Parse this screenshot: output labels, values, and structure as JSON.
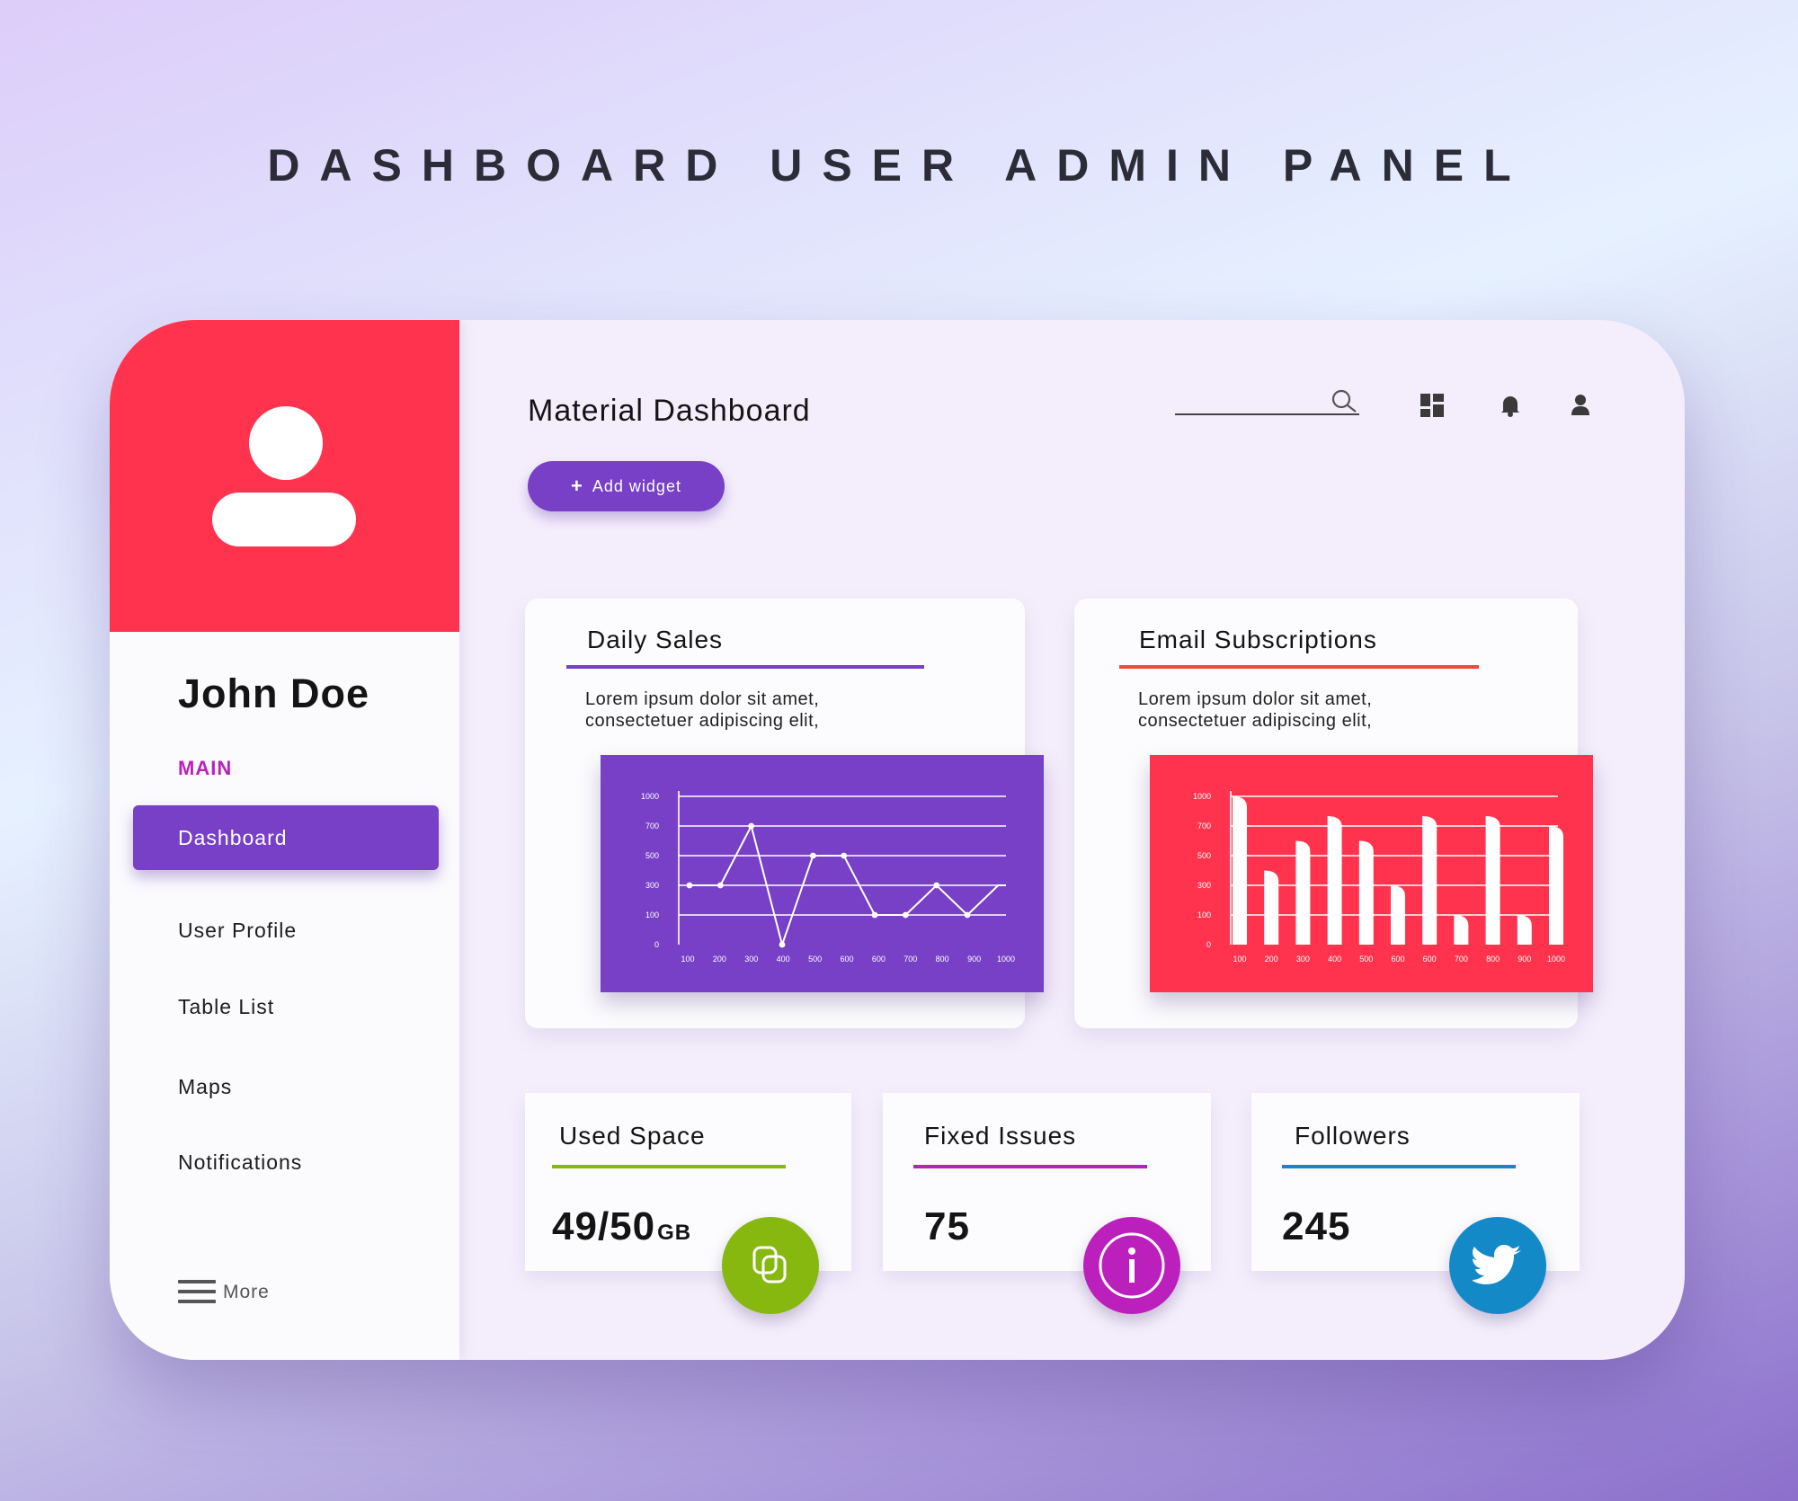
{
  "banner": {
    "title": "DASHBOARD USER ADMIN PANEL"
  },
  "sidebar": {
    "user_name": "John Doe",
    "section_label": "MAIN",
    "items": [
      {
        "label": "Dashboard",
        "active": true
      },
      {
        "label": "User Profile"
      },
      {
        "label": "Table List"
      },
      {
        "label": "Maps"
      },
      {
        "label": "Notifications"
      }
    ],
    "more_label": "More"
  },
  "header": {
    "title": "Material Dashboard",
    "add_widget_label": "Add widget",
    "icons": [
      "search-icon",
      "grid-icon",
      "bell-icon",
      "user-icon"
    ]
  },
  "cards": {
    "daily_sales": {
      "title": "Daily Sales",
      "desc_line1": "Lorem ipsum dolor sit amet,",
      "desc_line2": "consectetuer adipiscing elit,",
      "accent": "#7740c7"
    },
    "email_subscriptions": {
      "title": "Email Subscriptions",
      "desc_line1": "Lorem ipsum dolor sit amet,",
      "desc_line2": "consectetuer adipiscing elit,",
      "accent": "#ff334d"
    }
  },
  "stats": {
    "used_space": {
      "title": "Used Space",
      "value": "49/50",
      "unit": "GB",
      "accent": "#86b80f",
      "icon": "copy-icon"
    },
    "fixed_issues": {
      "title": "Fixed Issues",
      "value": "75",
      "accent": "#bc20bc",
      "icon": "info-icon"
    },
    "followers": {
      "title": "Followers",
      "value": "245",
      "accent": "#1389c8",
      "icon": "twitter-icon"
    }
  },
  "chart_data": [
    {
      "type": "line",
      "y_ticks": [
        "1000",
        "700",
        "500",
        "300",
        "100",
        "0"
      ],
      "x": [
        "100",
        "200",
        "300",
        "400",
        "500",
        "600",
        "600",
        "700",
        "800",
        "900",
        "1000"
      ],
      "values": [
        300,
        300,
        700,
        0,
        500,
        500,
        100,
        100,
        300,
        100,
        300
      ],
      "grid": true
    },
    {
      "type": "bar",
      "y_ticks": [
        "1000",
        "700",
        "500",
        "300",
        "100",
        "0"
      ],
      "categories": [
        "100",
        "200",
        "300",
        "400",
        "500",
        "600",
        "600",
        "700",
        "800",
        "900",
        "1000"
      ],
      "values": [
        1000,
        400,
        600,
        800,
        600,
        300,
        800,
        100,
        800,
        100,
        700
      ],
      "grid": true
    }
  ]
}
